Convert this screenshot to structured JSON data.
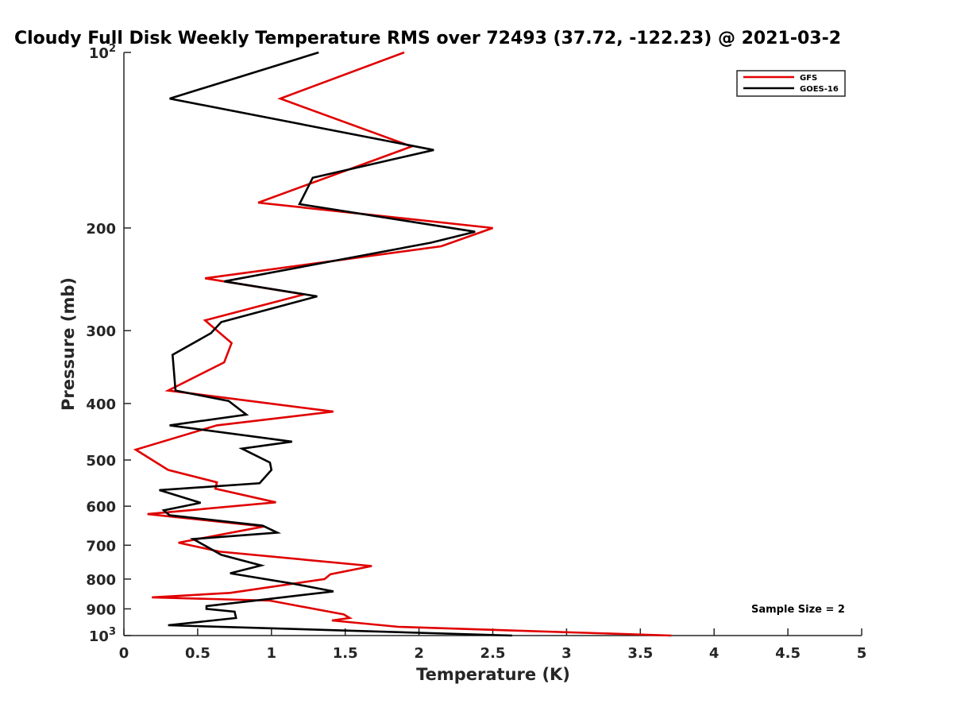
{
  "chart_data": {
    "type": "line",
    "title": "Cloudy Full Disk Weekly Temperature RMS over 72493 (37.72, -122.23) @ 2021-03-2",
    "xlabel": "Temperature (K)",
    "ylabel": "Pressure (mb)",
    "xlim": [
      0,
      5
    ],
    "ylim": [
      1000,
      100
    ],
    "yscale": "log",
    "y_reversed": true,
    "x_ticks": [
      0,
      0.5,
      1,
      1.5,
      2,
      2.5,
      3,
      3.5,
      4,
      4.5,
      5
    ],
    "x_tick_labels": [
      "0",
      "0.5",
      "1",
      "1.5",
      "2",
      "2.5",
      "3",
      "3.5",
      "4",
      "4.5",
      "5"
    ],
    "y_ticks": [
      100,
      200,
      300,
      400,
      500,
      600,
      700,
      800,
      900,
      1000
    ],
    "y_tick_labels": [
      {
        "base": "10",
        "exp": "2"
      },
      {
        "base": "200"
      },
      {
        "base": "300"
      },
      {
        "base": "400"
      },
      {
        "base": "500"
      },
      {
        "base": "600"
      },
      {
        "base": "700"
      },
      {
        "base": "800"
      },
      {
        "base": "900"
      },
      {
        "base": "10",
        "exp": "3"
      }
    ],
    "grid": false,
    "legend_position": "top-right",
    "annotation": "Sample Size = 2",
    "series": [
      {
        "name": "GFS",
        "color": "#e00000",
        "points": [
          [
            1.9,
            100
          ],
          [
            1.06,
            120
          ],
          [
            1.95,
            145
          ],
          [
            0.91,
            181
          ],
          [
            2.5,
            200
          ],
          [
            2.15,
            215
          ],
          [
            0.55,
            244
          ],
          [
            1.22,
            260
          ],
          [
            0.55,
            288
          ],
          [
            0.73,
            315
          ],
          [
            0.68,
            340
          ],
          [
            0.3,
            380
          ],
          [
            1.42,
            413
          ],
          [
            0.63,
            436
          ],
          [
            0.08,
            480
          ],
          [
            0.3,
            520
          ],
          [
            0.63,
            546
          ],
          [
            0.62,
            560
          ],
          [
            1.03,
            591
          ],
          [
            0.16,
            619
          ],
          [
            0.95,
            650
          ],
          [
            0.37,
            693
          ],
          [
            0.65,
            718
          ],
          [
            1.68,
            760
          ],
          [
            1.4,
            785
          ],
          [
            1.36,
            800
          ],
          [
            0.72,
            845
          ],
          [
            0.19,
            860
          ],
          [
            0.99,
            871
          ],
          [
            1.49,
            920
          ],
          [
            1.53,
            933
          ],
          [
            1.41,
            942
          ],
          [
            1.86,
            966
          ],
          [
            3.71,
            1000
          ]
        ]
      },
      {
        "name": "GOES-16",
        "color": "#000000",
        "points": [
          [
            1.32,
            100
          ],
          [
            0.31,
            120
          ],
          [
            2.1,
            147
          ],
          [
            1.28,
            164
          ],
          [
            1.19,
            182
          ],
          [
            2.38,
            203
          ],
          [
            2.08,
            212
          ],
          [
            0.68,
            247
          ],
          [
            1.31,
            262
          ],
          [
            0.66,
            290
          ],
          [
            0.59,
            303
          ],
          [
            0.33,
            330
          ],
          [
            0.35,
            380
          ],
          [
            0.71,
            396
          ],
          [
            0.83,
            418
          ],
          [
            0.31,
            436
          ],
          [
            1.14,
            465
          ],
          [
            0.8,
            478
          ],
          [
            0.99,
            505
          ],
          [
            1.0,
            520
          ],
          [
            0.92,
            548
          ],
          [
            0.24,
            563
          ],
          [
            0.52,
            592
          ],
          [
            0.27,
            610
          ],
          [
            0.31,
            622
          ],
          [
            0.94,
            648
          ],
          [
            1.04,
            666
          ],
          [
            0.47,
            683
          ],
          [
            0.66,
            727
          ],
          [
            0.93,
            758
          ],
          [
            0.72,
            782
          ],
          [
            1.15,
            815
          ],
          [
            1.42,
            840
          ],
          [
            0.91,
            870
          ],
          [
            0.56,
            890
          ],
          [
            0.56,
            900
          ],
          [
            0.75,
            910
          ],
          [
            0.76,
            933
          ],
          [
            0.3,
            960
          ],
          [
            2.63,
            1000
          ]
        ]
      }
    ]
  }
}
